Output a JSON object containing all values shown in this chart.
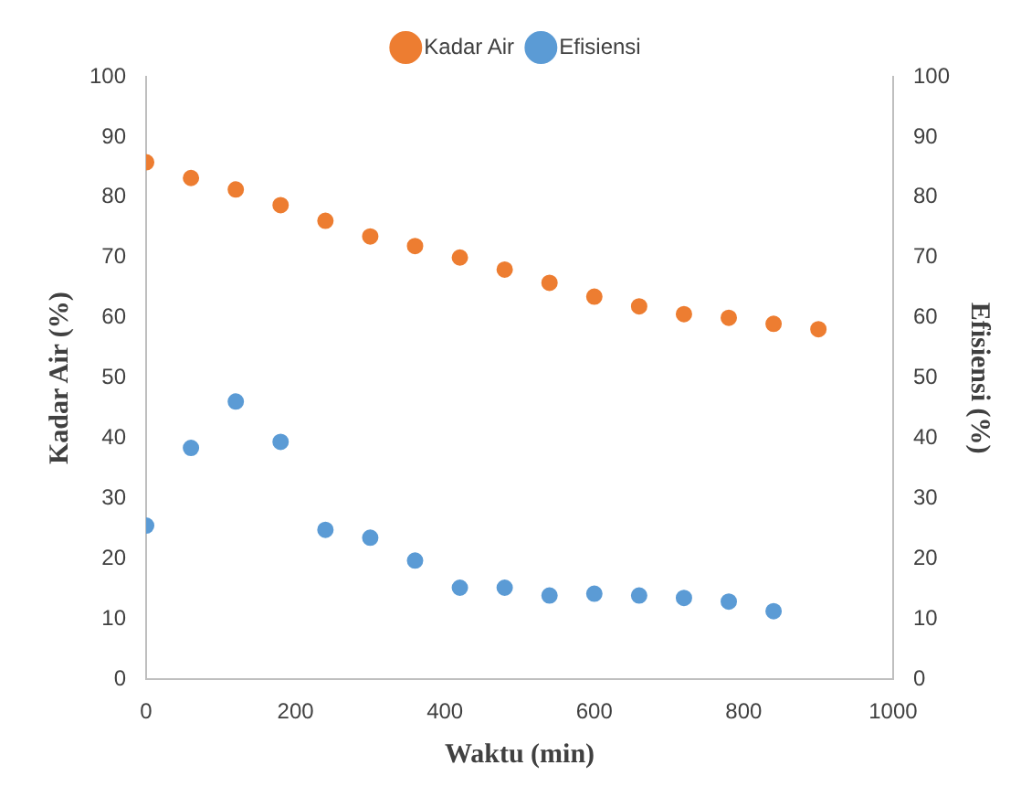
{
  "chart_data": {
    "type": "scatter",
    "xlabel": "Waktu (min)",
    "ylabel": "Kadar Air (%)",
    "y2label": "Efisiensi (%)",
    "xlim": [
      0,
      1000
    ],
    "xticks": [
      0,
      200,
      400,
      600,
      800,
      1000
    ],
    "ylim": [
      0,
      100
    ],
    "yticks": [
      0,
      10,
      20,
      30,
      40,
      50,
      60,
      70,
      80,
      90,
      100
    ],
    "y2lim": [
      0,
      100
    ],
    "y2ticks": [
      0,
      10,
      20,
      30,
      40,
      50,
      60,
      70,
      80,
      90,
      100
    ],
    "grid": false,
    "legend": "top",
    "marker": "circle",
    "series": [
      {
        "name": "Kadar Air",
        "color": "#ed7d31",
        "x": [
          0,
          60,
          120,
          180,
          240,
          300,
          360,
          420,
          480,
          540,
          600,
          660,
          720,
          780,
          840,
          900
        ],
        "values": [
          85.8,
          83.2,
          81.3,
          78.7,
          76.1,
          73.5,
          71.9,
          70,
          68,
          65.8,
          63.5,
          61.9,
          60.6,
          60,
          59,
          58.1
        ]
      },
      {
        "name": "Efisiensi",
        "color": "#5b9bd5",
        "x": [
          0,
          60,
          120,
          180,
          240,
          300,
          360,
          420,
          480,
          540,
          600,
          660,
          720,
          780,
          840
        ],
        "values": [
          25.5,
          38.4,
          46.1,
          39.4,
          24.8,
          23.5,
          19.7,
          15.2,
          15.2,
          13.9,
          14.2,
          13.9,
          13.5,
          12.9,
          11.3
        ]
      }
    ]
  }
}
